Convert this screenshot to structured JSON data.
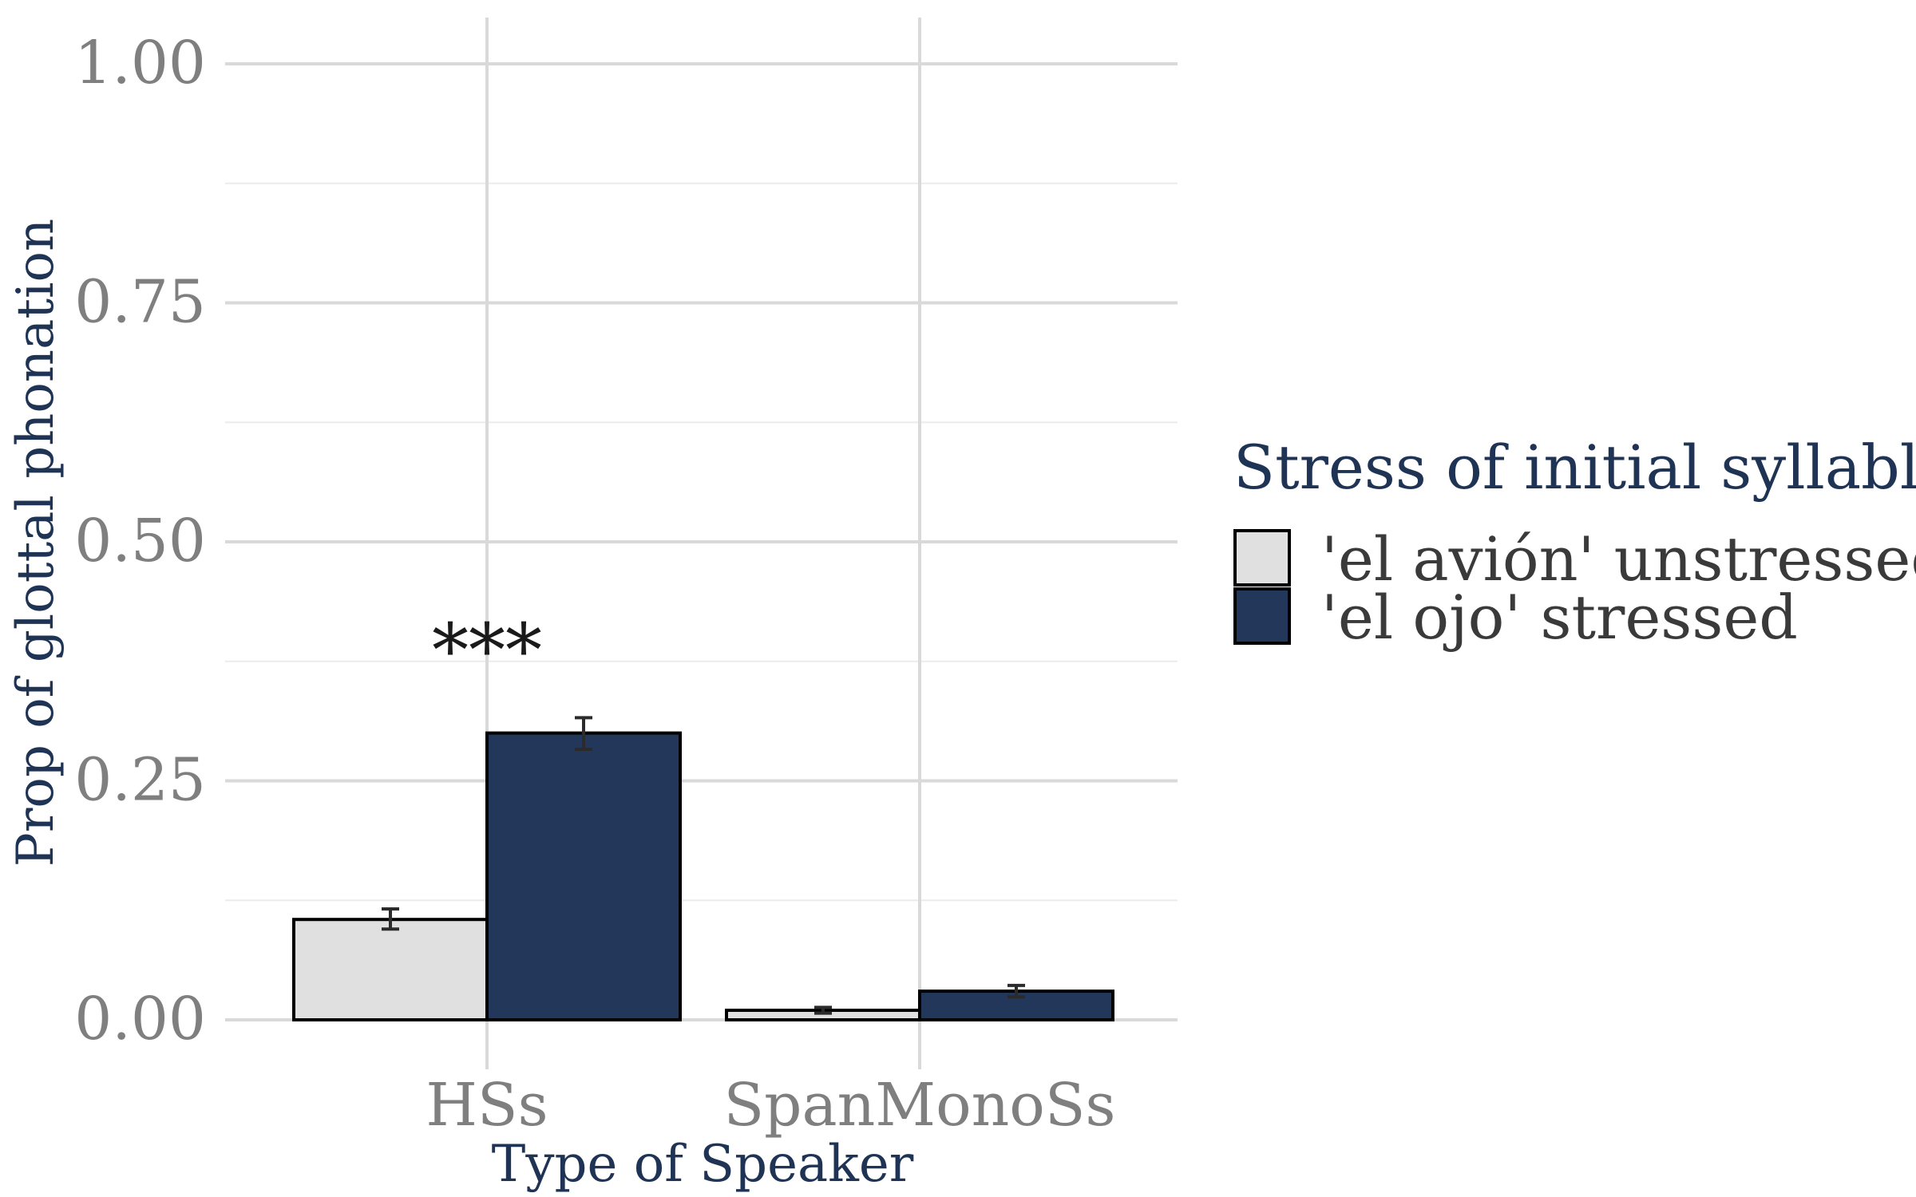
{
  "chart_data": {
    "type": "bar",
    "xlabel": "Type of Speaker",
    "ylabel": "Prop of glottal phonation",
    "categories": [
      "HSs",
      "SpanMonoSs"
    ],
    "ylim": [
      0,
      1
    ],
    "yticks": [
      "0.00",
      "0.25",
      "0.50",
      "0.75",
      "1.00"
    ],
    "grid": true,
    "legend": {
      "title": "Stress of initial syllable",
      "placement": "right"
    },
    "series": [
      {
        "name": "'el avión' unstressed",
        "color": "#e0e0e0",
        "values": [
          0.105,
          0.01
        ],
        "error_low": [
          0.095,
          0.007
        ],
        "error_high": [
          0.116,
          0.013
        ]
      },
      {
        "name": "'el ojo' stressed",
        "color": "#22375a",
        "values": [
          0.3,
          0.03
        ],
        "error_low": [
          0.283,
          0.024
        ],
        "error_high": [
          0.316,
          0.036
        ]
      }
    ],
    "annotations": [
      {
        "text": "***",
        "category": "HSs",
        "y": 0.42
      }
    ]
  }
}
